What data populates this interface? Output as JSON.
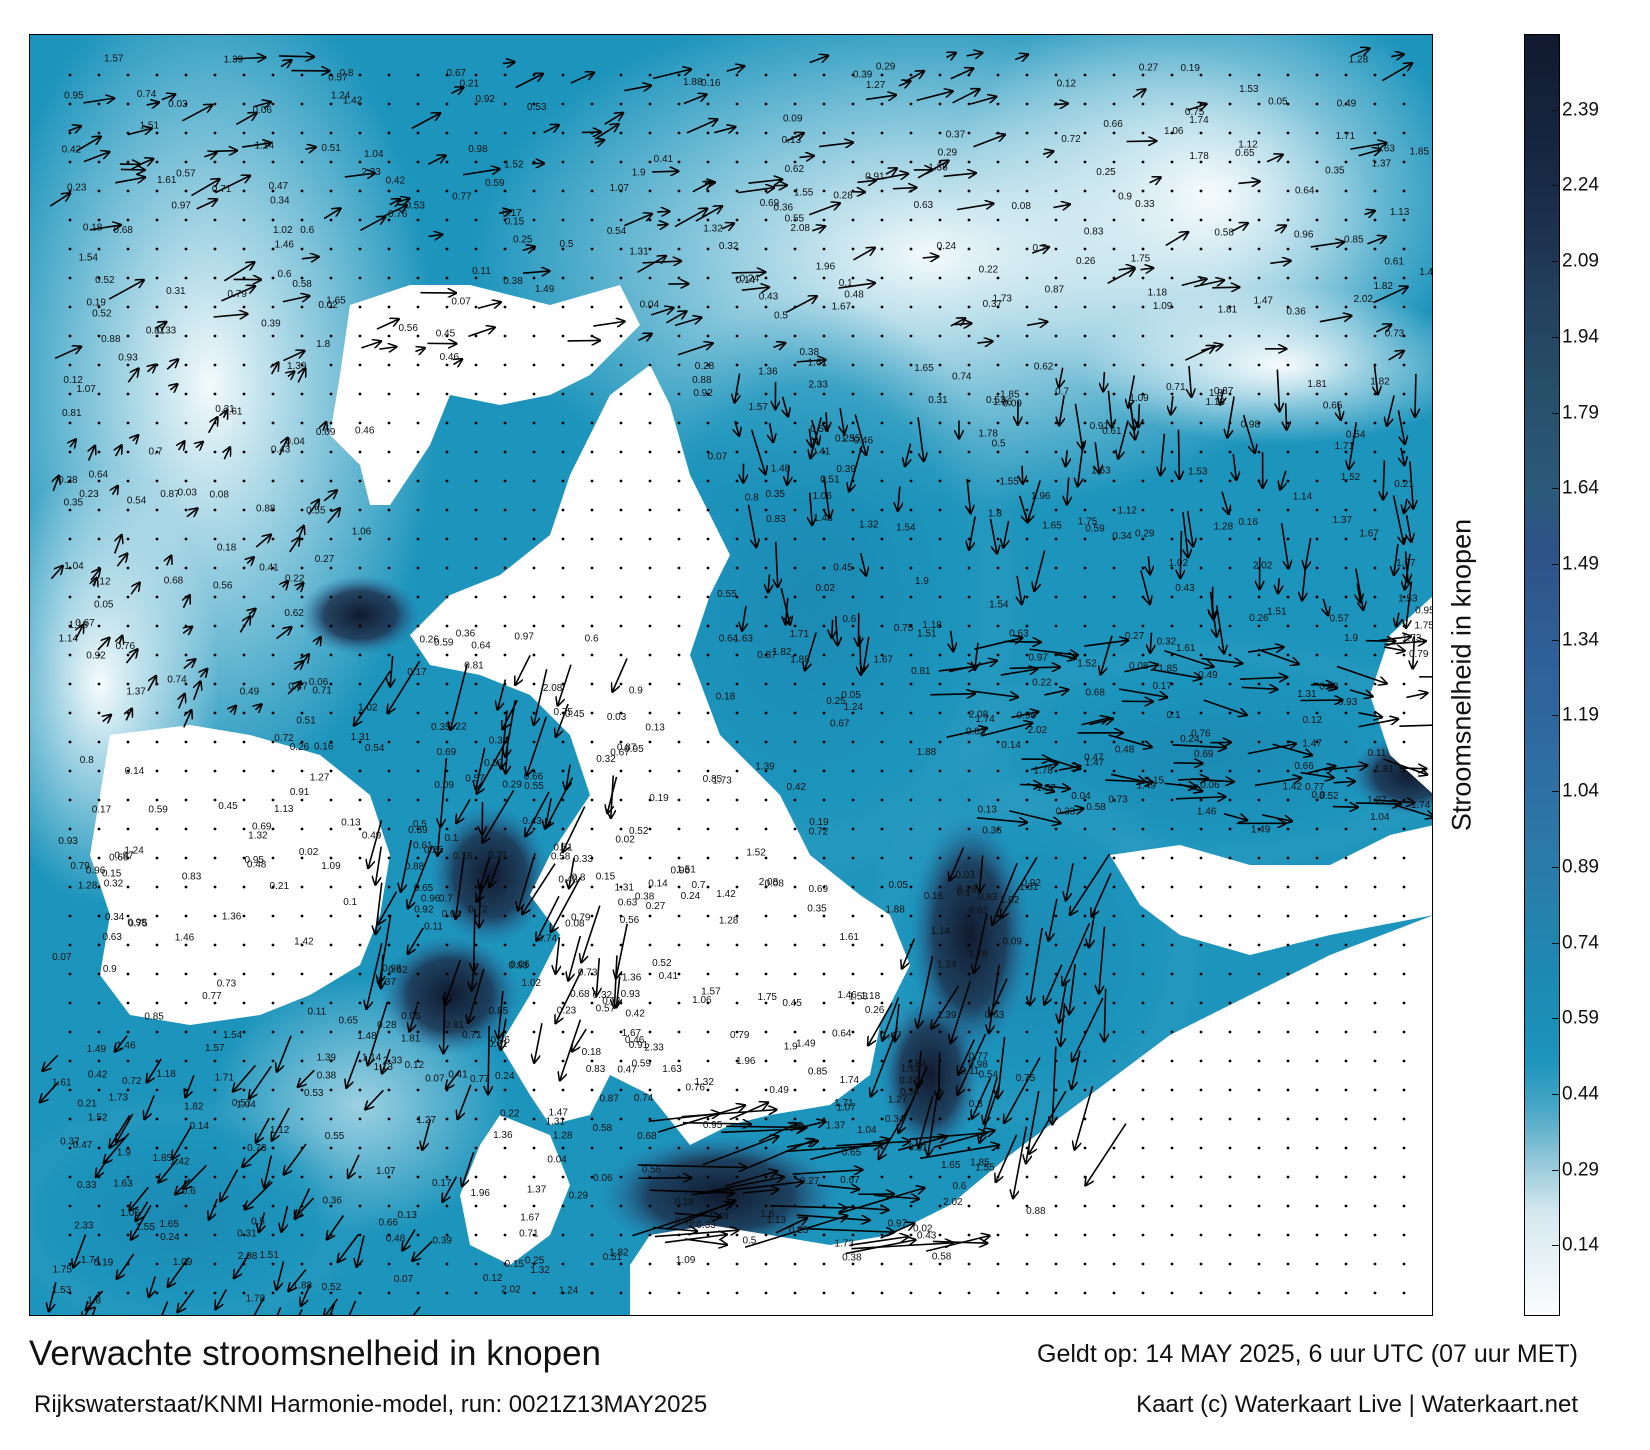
{
  "map": {
    "title": "Verwachte stroomsnelheid in knopen",
    "subtitle": "Rijkswaterstaat/KNMI Harmonie-model, run: 0021Z13MAY2025",
    "valid_time": "Geldt op: 14 MAY 2025, 6 uur UTC (07 uur MET)",
    "credit": "Kaart (c) Waterkaart Live | Waterkaart.net",
    "colors": {
      "land": "#ffffff",
      "sea_low": "#e8f3f7",
      "sea_mid": "#1c94bc",
      "sea_high": "#111a2f",
      "arrow": "#000000"
    }
  },
  "colorbar": {
    "label": "Stroomsnelheid in knopen",
    "ticks": [
      "2.39",
      "2.24",
      "2.09",
      "1.94",
      "1.79",
      "1.64",
      "1.49",
      "1.34",
      "1.19",
      "1.04",
      "0.89",
      "0.74",
      "0.59",
      "0.44",
      "0.29",
      "0.14"
    ],
    "min": 0.0,
    "max": 2.54
  },
  "value_labels": [
    "0.37",
    "0.24",
    "0.38",
    "0.36",
    "0.33",
    "0.57",
    "0.52",
    "0.6",
    "0.58",
    "0.5",
    "0.42",
    "0.39",
    "0.53",
    "0.29",
    "0.25",
    "0.19",
    "0.21",
    "0.12",
    "0.07",
    "0.04",
    "0.22",
    "0.31",
    "0.17",
    "0.14",
    "0.13",
    "0.15",
    "0.55",
    "0.61",
    "0.66",
    "0.71",
    "0.72",
    "0.73",
    "0.48",
    "0.47",
    "0.45",
    "0.56",
    "0.28",
    "0.18",
    "0.16",
    "0.11",
    "0.09",
    "0.1",
    "0.08",
    "0.06",
    "0.05",
    "0.03",
    "0.02",
    "0.26",
    "0.27",
    "0.23",
    "0.32",
    "0.34",
    "0.35",
    "0.41",
    "0.43",
    "0.46",
    "0.49",
    "0.51",
    "0.54",
    "0.59",
    "0.62",
    "0.63",
    "0.64",
    "0.65",
    "0.67",
    "0.68",
    "0.69",
    "0.7",
    "0.74",
    "0.75",
    "0.76",
    "0.77",
    "0.79",
    "0.8",
    "0.81",
    "0.83",
    "0.85",
    "0.87",
    "0.88",
    "0.9",
    "0.91",
    "0.92",
    "0.93",
    "0.95",
    "0.96",
    "0.97",
    "0.98",
    "1.02",
    "1.04",
    "1.06",
    "1.07",
    "1.09",
    "1.12",
    "1.13",
    "1.14",
    "1.18",
    "1.24",
    "1.27",
    "1.28",
    "1.31",
    "1.32",
    "1.36",
    "1.37",
    "1.39",
    "1.42",
    "1.46",
    "1.47",
    "1.48",
    "1.49",
    "1.51",
    "1.52",
    "1.53",
    "1.54",
    "1.55",
    "1.57",
    "1.61",
    "1.63",
    "1.65",
    "1.67",
    "1.71",
    "1.73",
    "1.74",
    "1.75",
    "1.78",
    "1.8",
    "1.81",
    "1.82",
    "1.85",
    "1.88",
    "1.9",
    "1.96",
    "2.02",
    "2.08",
    "2.33"
  ]
}
